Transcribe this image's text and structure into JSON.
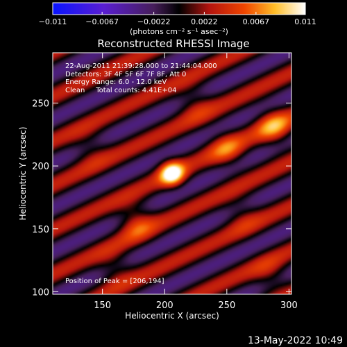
{
  "chart_data": {
    "type": "heatmap",
    "title": "Reconstructed RHESSI Image",
    "xlabel": "Heliocentric X (arcsec)",
    "ylabel": "Heliocentric Y (arcsec)",
    "xlim": [
      110,
      302
    ],
    "ylim": [
      98,
      290
    ],
    "x_ticks": [
      150,
      200,
      250,
      300
    ],
    "y_ticks": [
      100,
      150,
      200,
      250
    ],
    "colorbar": {
      "range": [
        -0.011,
        0.011
      ],
      "ticks": [
        "-0.011",
        "-0.0067",
        "-0.0022",
        "0.0022",
        "0.0067",
        "0.011"
      ],
      "unit_label": "(photons cm⁻² s⁻¹ asec⁻²)"
    },
    "annotations": [
      "22-Aug-2011 21:39:28.000 to 21:44:04.000",
      "Detectors: 3F 4F 5F 6F 7F 8F, Att 0",
      "Energy Range: 6.0 - 12.0 keV",
      "Clean     Total counts: 4.41E+04"
    ],
    "peak_text": "Position of Peak = [206,194]",
    "peak": {
      "x": 206,
      "y": 194,
      "value": 0.011
    },
    "source_sigma_arcsec": 7,
    "fringe_pattern": {
      "angle_deg": 25,
      "wavelength_arcsec": 32,
      "amplitude": 0.0035
    },
    "secondary_sources": [
      {
        "x": 177,
        "y": 156,
        "value": 0.005
      },
      {
        "x": 250,
        "y": 213,
        "value": 0.0045
      },
      {
        "x": 288,
        "y": 231,
        "value": 0.006
      },
      {
        "x": 224,
        "y": 250,
        "value": 0.003
      },
      {
        "x": 140,
        "y": 214,
        "value": 0.0025
      },
      {
        "x": 160,
        "y": 119,
        "value": 0.003
      },
      {
        "x": 262,
        "y": 161,
        "value": 0.0025
      },
      {
        "x": 285,
        "y": 112,
        "value": 0.003
      }
    ]
  },
  "footer": {
    "timestamp": "13-May-2022 10:49"
  }
}
